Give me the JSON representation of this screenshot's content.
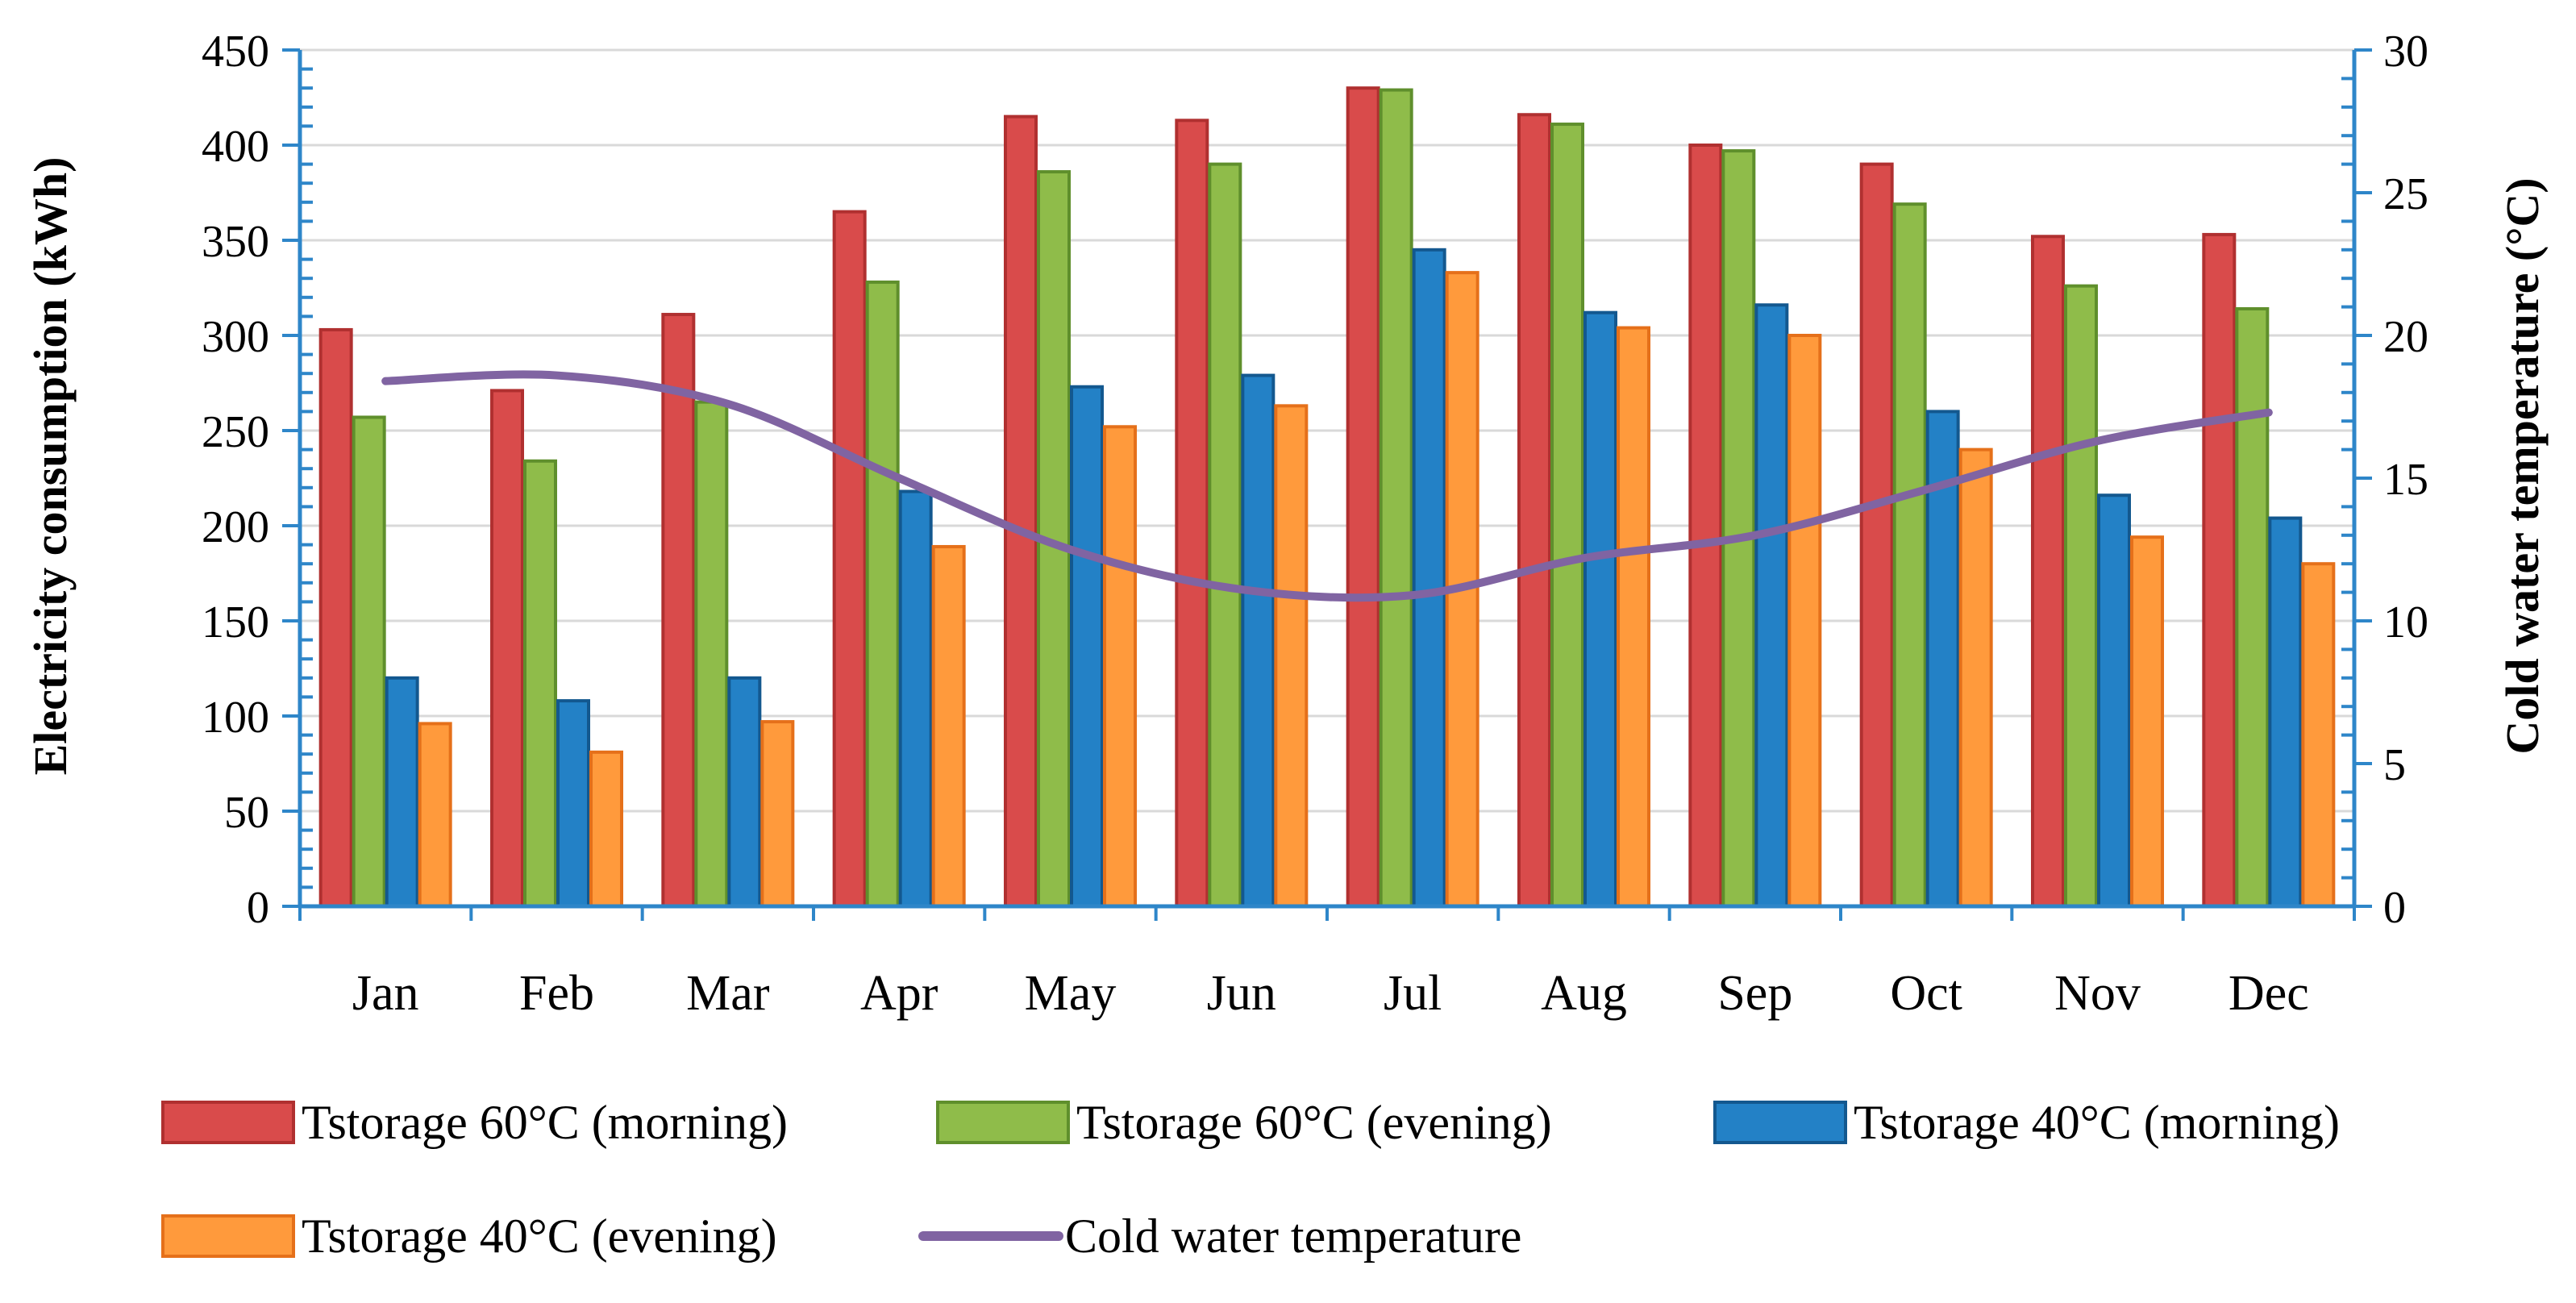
{
  "chart_data": {
    "type": "bar",
    "categories": [
      "Jan",
      "Feb",
      "Mar",
      "Apr",
      "May",
      "Jun",
      "Jul",
      "Aug",
      "Sep",
      "Oct",
      "Nov",
      "Dec"
    ],
    "series": [
      {
        "name": "Tstorage 60°C (morning)",
        "color": "#d94b4b",
        "stroke": "#b03030",
        "values": [
          303,
          271,
          311,
          365,
          415,
          413,
          430,
          416,
          400,
          390,
          352,
          353
        ]
      },
      {
        "name": "Tstorage 60°C (evening)",
        "color": "#8fbc4a",
        "stroke": "#5f8f2c",
        "values": [
          257,
          234,
          265,
          328,
          386,
          390,
          429,
          411,
          397,
          369,
          326,
          314
        ]
      },
      {
        "name": "Tstorage 40°C (morning)",
        "color": "#2381c6",
        "stroke": "#13588f",
        "values": [
          120,
          108,
          120,
          218,
          273,
          279,
          345,
          312,
          316,
          260,
          216,
          204
        ]
      },
      {
        "name": "Tstorage 40°C (evening)",
        "color": "#ff9a3c",
        "stroke": "#e5701a",
        "values": [
          96,
          81,
          97,
          189,
          252,
          263,
          333,
          304,
          300,
          240,
          194,
          180
        ]
      }
    ],
    "line_series": {
      "name": "Cold water temperature",
      "color": "#8064a2",
      "axis": "right",
      "values": [
        18.4,
        18.6,
        17.6,
        15.0,
        12.5,
        11.1,
        10.9,
        12.2,
        13.0,
        14.6,
        16.3,
        17.3
      ]
    },
    "title": "",
    "xlabel": "",
    "ylabel": "Electricity consumption (kWh)",
    "y2label": "Cold water temperature (°C)",
    "ylim": [
      0,
      450
    ],
    "y2lim": [
      0,
      30
    ],
    "yticks": [
      0,
      50,
      100,
      150,
      200,
      250,
      300,
      350,
      400,
      450
    ],
    "y2ticks": [
      0,
      5,
      10,
      15,
      20,
      25,
      30
    ],
    "grid": true,
    "legend_position": "bottom"
  }
}
